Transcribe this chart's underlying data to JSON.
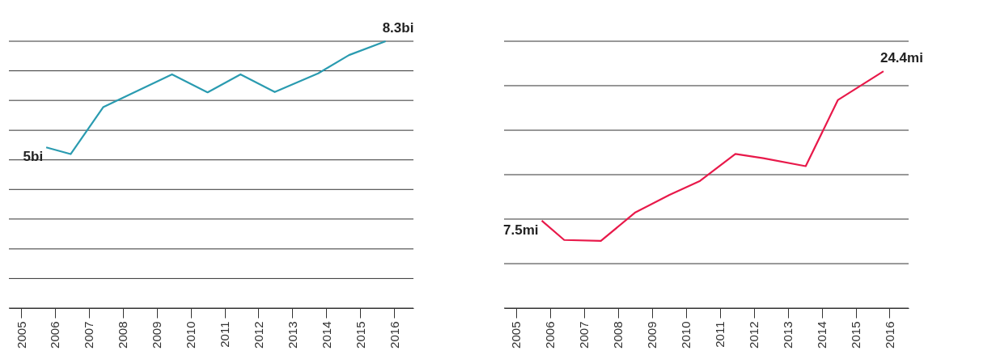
{
  "chart_data": [
    {
      "type": "line",
      "grid": "y",
      "tick_labels": "x",
      "x": [
        2005.74,
        2006.46,
        2007.42,
        2009.45,
        2010.5,
        2011.47,
        2012.48,
        2013.76,
        2014.67,
        2015.75
      ],
      "xlim": [
        2004.64,
        2016.57
      ],
      "xticks": [
        2005,
        2006,
        2007,
        2008,
        2009,
        2010,
        2011,
        2012,
        2013,
        2014,
        2015,
        2016
      ],
      "ylim": [
        0,
        8.3
      ],
      "yticks": [
        {
          "value": 0,
          "label": null
        },
        {
          "value": 0.92,
          "label": null
        },
        {
          "value": 1.84,
          "label": null
        },
        {
          "value": 2.77,
          "label": null
        },
        {
          "value": 3.69,
          "label": null
        },
        {
          "value": 4.61,
          "label": null
        },
        {
          "value": 5.53,
          "label": null
        },
        {
          "value": 6.46,
          "label": null
        },
        {
          "value": 7.38,
          "label": null
        },
        {
          "value": 8.3,
          "label": null
        }
      ],
      "series": [
        {
          "color": "#2a9bb0",
          "values": [
            5,
            4.79,
            6.25,
            7.27,
            6.71,
            7.27,
            6.72,
            7.3,
            7.87,
            8.3
          ],
          "value_labels": [
            "5bi",
            null,
            null,
            null,
            null,
            null,
            null,
            null,
            null,
            "8.3bi"
          ]
        }
      ]
    },
    {
      "type": "line",
      "grid": "y",
      "tick_labels": "x",
      "x": [
        2005.76,
        2006.42,
        2007.5,
        2008.5,
        2009.52,
        2010.42,
        2011.46,
        2012.28,
        2013.53,
        2014.48,
        2015.82
      ],
      "xlim": [
        2004.65,
        2016.56
      ],
      "xticks": [
        2005,
        2006,
        2007,
        2008,
        2009,
        2010,
        2011,
        2012,
        2013,
        2014,
        2015,
        2016
      ],
      "ylim": [
        -2.4,
        27.8
      ],
      "yticks": [
        {
          "value": -2.4,
          "label": null
        },
        {
          "value": 2.63,
          "label": null
        },
        {
          "value": 7.67,
          "label": null
        },
        {
          "value": 12.7,
          "label": null
        },
        {
          "value": 17.73,
          "label": null
        },
        {
          "value": 22.77,
          "label": null
        },
        {
          "value": 27.8,
          "label": null
        }
      ],
      "series": [
        {
          "color": "#e8194a",
          "values": [
            7.5,
            5.31,
            5.2,
            8.39,
            10.42,
            12,
            15.05,
            14.57,
            13.66,
            21.16,
            24.4
          ],
          "value_labels": [
            "7.5mi",
            null,
            null,
            null,
            null,
            null,
            null,
            null,
            null,
            null,
            "24.4mi"
          ]
        }
      ]
    }
  ]
}
